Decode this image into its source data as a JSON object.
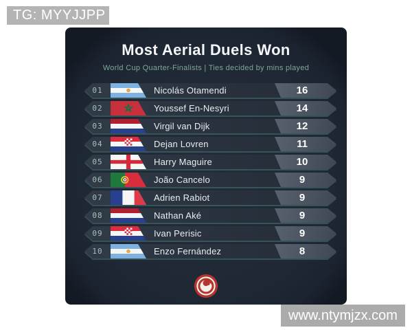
{
  "watermarks": {
    "top_left": "TG: MYYJJPP",
    "bottom_right": "www.ntymjzx.com"
  },
  "card": {
    "title": "Most Aerial Duels Won",
    "subtitle": "World Cup Quarter-Finalists | Ties decided by mins played",
    "logo": "red-swirl-logo",
    "colors": {
      "card_background": "#1f2835",
      "card_corner": "#141a24",
      "row_background": "#28313d",
      "value_badge": "#4a535f",
      "rank_text": "#a3c3b5",
      "subtitle_accent": "#7fa795",
      "row_underline": "#71b7a4",
      "logo_red": "#b5342e",
      "watermark_gray": "#b4b4b4"
    },
    "rows": [
      {
        "rank": "01",
        "country": "argentina",
        "player": "Nicolás Otamendi",
        "value": "16"
      },
      {
        "rank": "02",
        "country": "morocco",
        "player": "Youssef En-Nesyri",
        "value": "14"
      },
      {
        "rank": "03",
        "country": "netherlands",
        "player": "Virgil van Dijk",
        "value": "12"
      },
      {
        "rank": "04",
        "country": "croatia",
        "player": "Dejan Lovren",
        "value": "11"
      },
      {
        "rank": "05",
        "country": "england",
        "player": "Harry Maguire",
        "value": "10"
      },
      {
        "rank": "06",
        "country": "portugal",
        "player": "João Cancelo",
        "value": "9"
      },
      {
        "rank": "07",
        "country": "france",
        "player": "Adrien Rabiot",
        "value": "9"
      },
      {
        "rank": "08",
        "country": "netherlands",
        "player": "Nathan Aké",
        "value": "9"
      },
      {
        "rank": "09",
        "country": "croatia",
        "player": "Ivan Perisic",
        "value": "9"
      },
      {
        "rank": "10",
        "country": "argentina",
        "player": "Enzo Fernández",
        "value": "8"
      }
    ]
  },
  "chart_data": {
    "type": "table",
    "title": "Most Aerial Duels Won",
    "subtitle": "World Cup Quarter-Finalists | Ties decided by mins played",
    "columns": [
      "rank",
      "country",
      "player",
      "aerial_duels_won"
    ],
    "categories": [
      "Nicolás Otamendi",
      "Youssef En-Nesyri",
      "Virgil van Dijk",
      "Dejan Lovren",
      "Harry Maguire",
      "João Cancelo",
      "Adrien Rabiot",
      "Nathan Aké",
      "Ivan Perisic",
      "Enzo Fernández"
    ],
    "values": [
      16,
      14,
      12,
      11,
      10,
      9,
      9,
      9,
      9,
      8
    ],
    "countries": [
      "Argentina",
      "Morocco",
      "Netherlands",
      "Croatia",
      "England",
      "Portugal",
      "France",
      "Netherlands",
      "Croatia",
      "Argentina"
    ]
  }
}
